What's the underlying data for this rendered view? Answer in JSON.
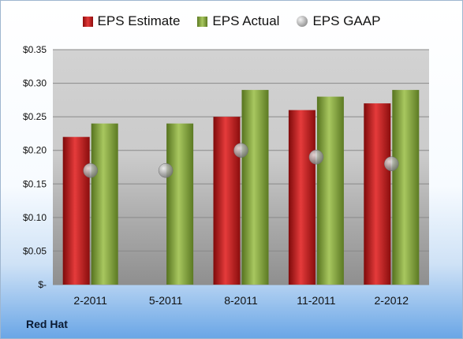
{
  "company": "Red Hat",
  "legend": {
    "estimate": "EPS Estimate",
    "actual": "EPS Actual",
    "gaap": "EPS GAAP"
  },
  "colors": {
    "estimate": "#c8161b",
    "actual": "#8db040",
    "gaap": "#b0b0b0"
  },
  "chart_data": {
    "type": "bar",
    "categories": [
      "2-2011",
      "5-2011",
      "8-2011",
      "11-2011",
      "2-2012"
    ],
    "series": [
      {
        "name": "EPS Estimate",
        "type": "bar",
        "values": [
          0.22,
          null,
          0.25,
          0.26,
          0.27
        ]
      },
      {
        "name": "EPS Actual",
        "type": "bar",
        "values": [
          0.24,
          0.24,
          0.29,
          0.28,
          0.29
        ]
      },
      {
        "name": "EPS GAAP",
        "type": "scatter",
        "values": [
          0.17,
          0.17,
          0.2,
          0.19,
          0.18
        ]
      }
    ],
    "ylim": [
      0,
      0.35
    ],
    "yticks": [
      0,
      0.05,
      0.1,
      0.15,
      0.2,
      0.25,
      0.3,
      0.35
    ],
    "ytick_labels": [
      "$-",
      "$0.05",
      "$0.10",
      "$0.15",
      "$0.20",
      "$0.25",
      "$0.30",
      "$0.35"
    ],
    "grid": true,
    "legend_position": "top"
  }
}
